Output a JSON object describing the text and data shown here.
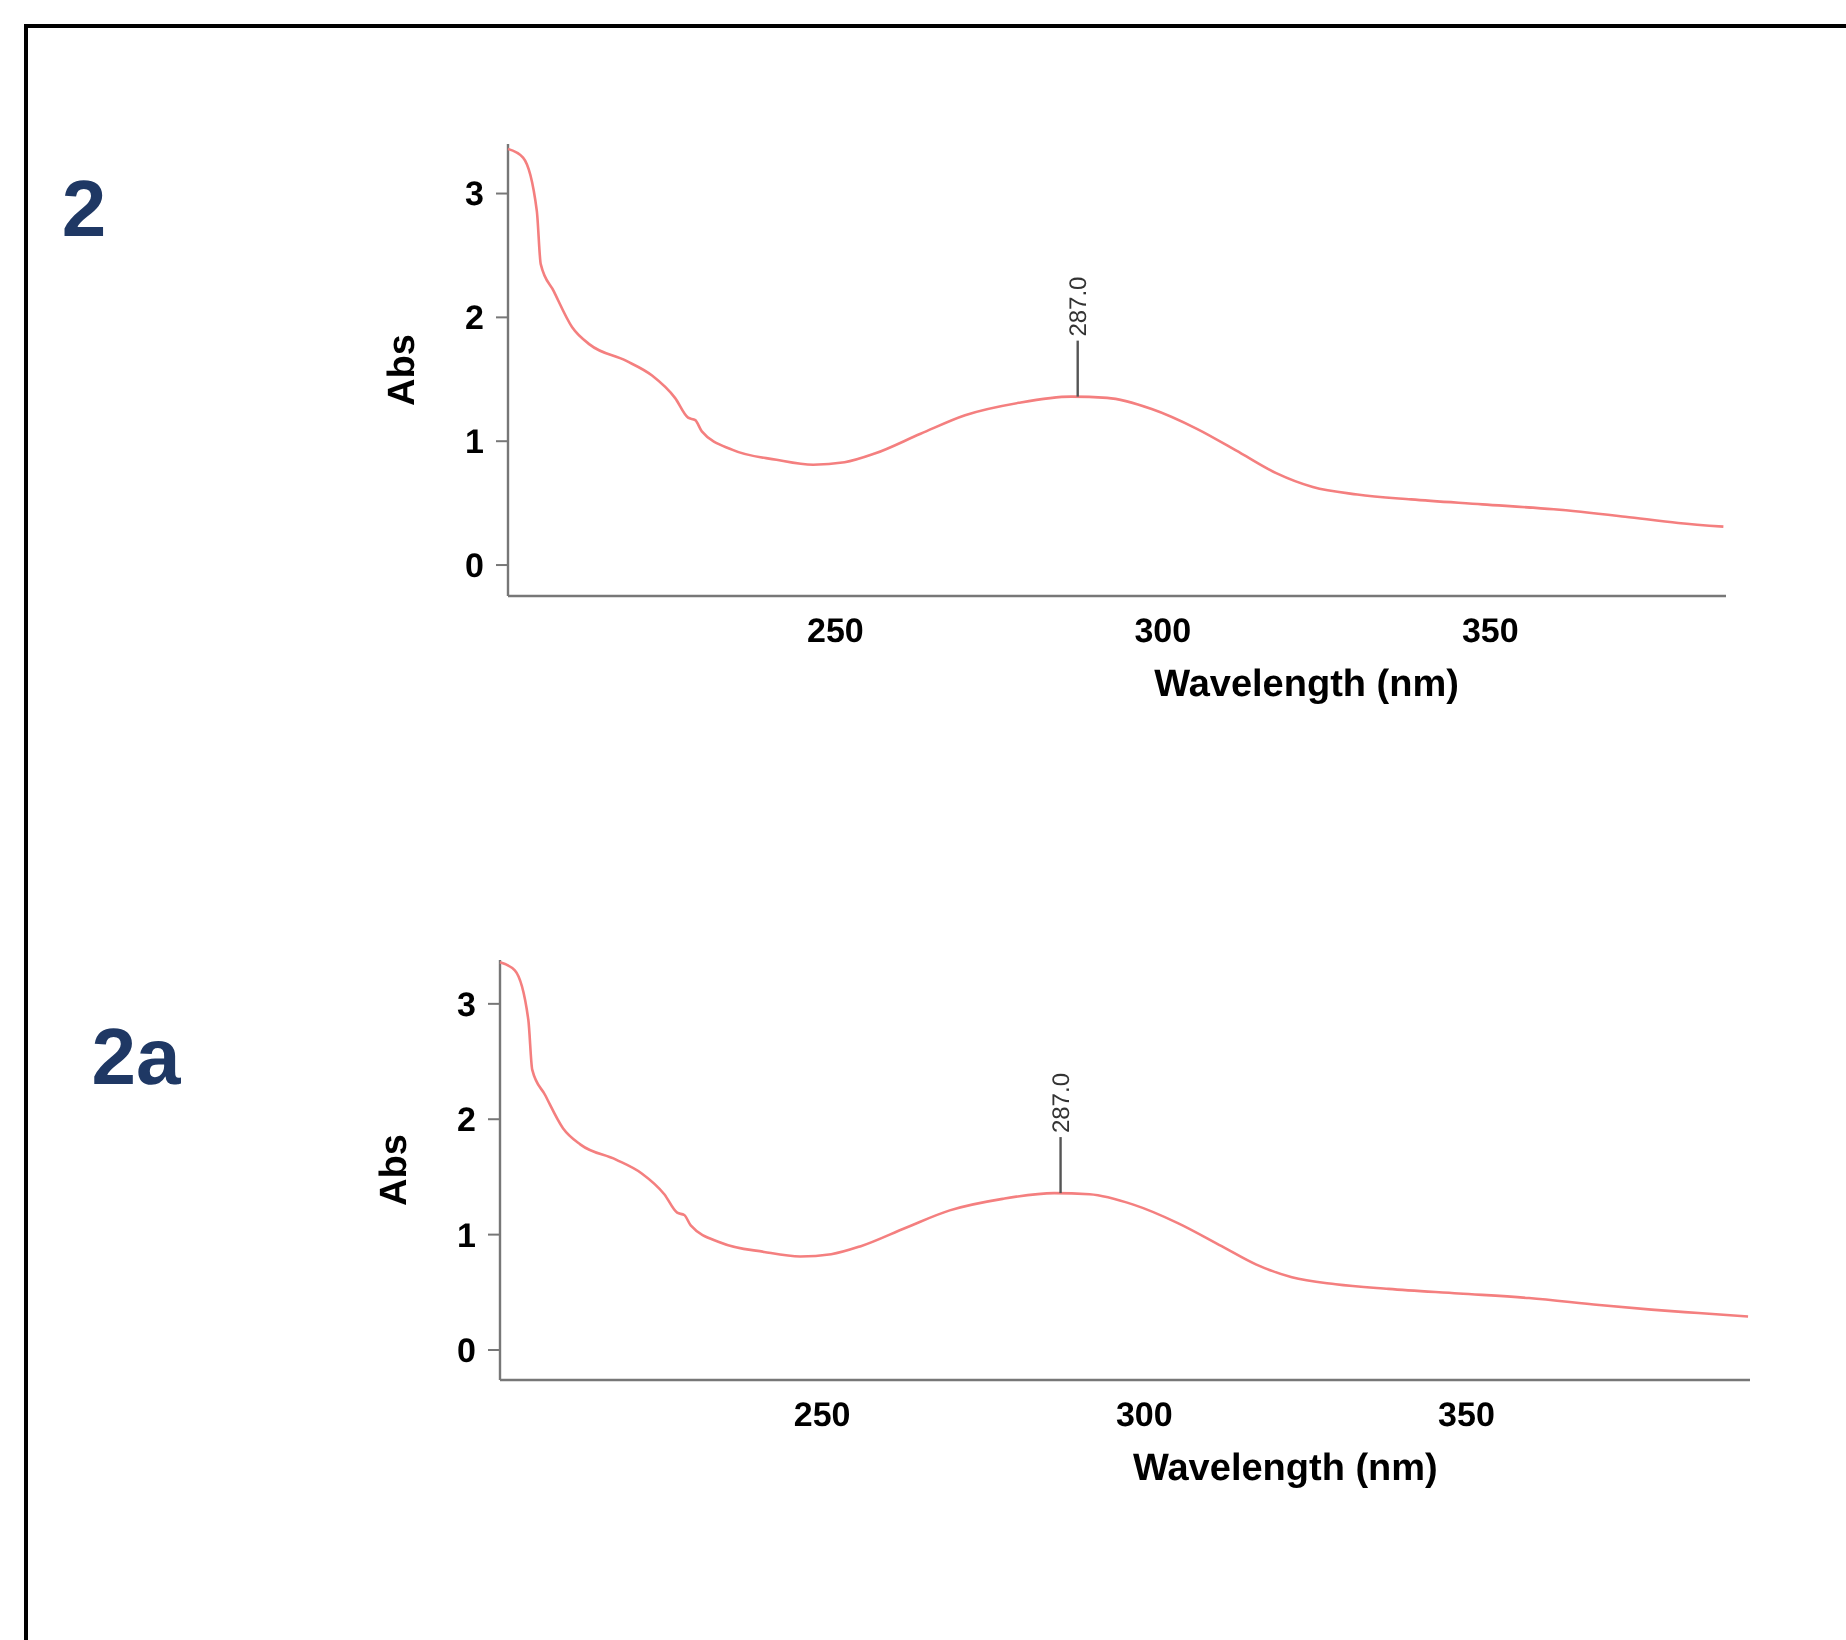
{
  "chart_data": [
    {
      "type": "line",
      "title": "2",
      "xlabel": "Wavelength (nm)",
      "ylabel": "Abs",
      "xlim": [
        200,
        386
      ],
      "ylim": [
        -0.25,
        3.4
      ],
      "xticks": [
        250,
        300,
        350
      ],
      "yticks": [
        0,
        1,
        2,
        3
      ],
      "x": [
        200,
        202.3,
        204.4,
        205,
        207,
        209.8,
        212.5,
        218,
        222,
        225.5,
        227.5,
        228.6,
        229.6,
        234.3,
        241,
        246.6,
        251.4,
        256,
        263,
        269.8,
        278,
        286,
        291.5,
        298.3,
        305.2,
        312,
        317.4,
        322.9,
        329.7,
        337.9,
        348.8,
        359.7,
        370.6,
        378.7,
        385.6
      ],
      "series": [
        {
          "color": "#f47f7f",
          "values": [
            3.36,
            3.29,
            2.86,
            2.43,
            2.21,
            1.92,
            1.78,
            1.65,
            1.53,
            1.35,
            1.19,
            1.17,
            1.08,
            0.93,
            0.85,
            0.81,
            0.83,
            0.9,
            1.06,
            1.21,
            1.31,
            1.36,
            1.35,
            1.26,
            1.1,
            0.9,
            0.74,
            0.63,
            0.57,
            0.53,
            0.49,
            0.45,
            0.39,
            0.34,
            0.31
          ]
        }
      ],
      "annotations": [
        {
          "text": "287.0",
          "x": 287,
          "y": 1.36
        }
      ]
    },
    {
      "type": "line",
      "title": "2a",
      "xlabel": "Wavelength (nm)",
      "ylabel": "Abs",
      "xlim": [
        200,
        394
      ],
      "ylim": [
        -0.26,
        3.38
      ],
      "xticks": [
        250,
        300,
        350
      ],
      "yticks": [
        0,
        1,
        2,
        3
      ],
      "x": [
        200,
        202.3,
        204.4,
        205,
        207,
        209.8,
        212.5,
        218,
        222,
        225.5,
        227.5,
        228.6,
        229.6,
        234.3,
        241,
        246.6,
        251.4,
        256,
        263,
        269.8,
        278,
        286,
        291.5,
        298.3,
        305.2,
        312,
        317.4,
        322.9,
        329.7,
        337.9,
        348.8,
        359.7,
        370.6,
        378.7,
        386,
        393.7
      ],
      "series": [
        {
          "color": "#f47f7f",
          "values": [
            3.36,
            3.29,
            2.86,
            2.43,
            2.21,
            1.92,
            1.78,
            1.65,
            1.53,
            1.35,
            1.19,
            1.17,
            1.08,
            0.93,
            0.85,
            0.81,
            0.83,
            0.9,
            1.06,
            1.21,
            1.31,
            1.36,
            1.35,
            1.26,
            1.1,
            0.9,
            0.74,
            0.63,
            0.57,
            0.53,
            0.49,
            0.45,
            0.39,
            0.35,
            0.32,
            0.29
          ]
        }
      ],
      "annotations": [
        {
          "text": "287.0",
          "x": 287,
          "y": 1.36
        }
      ]
    }
  ]
}
